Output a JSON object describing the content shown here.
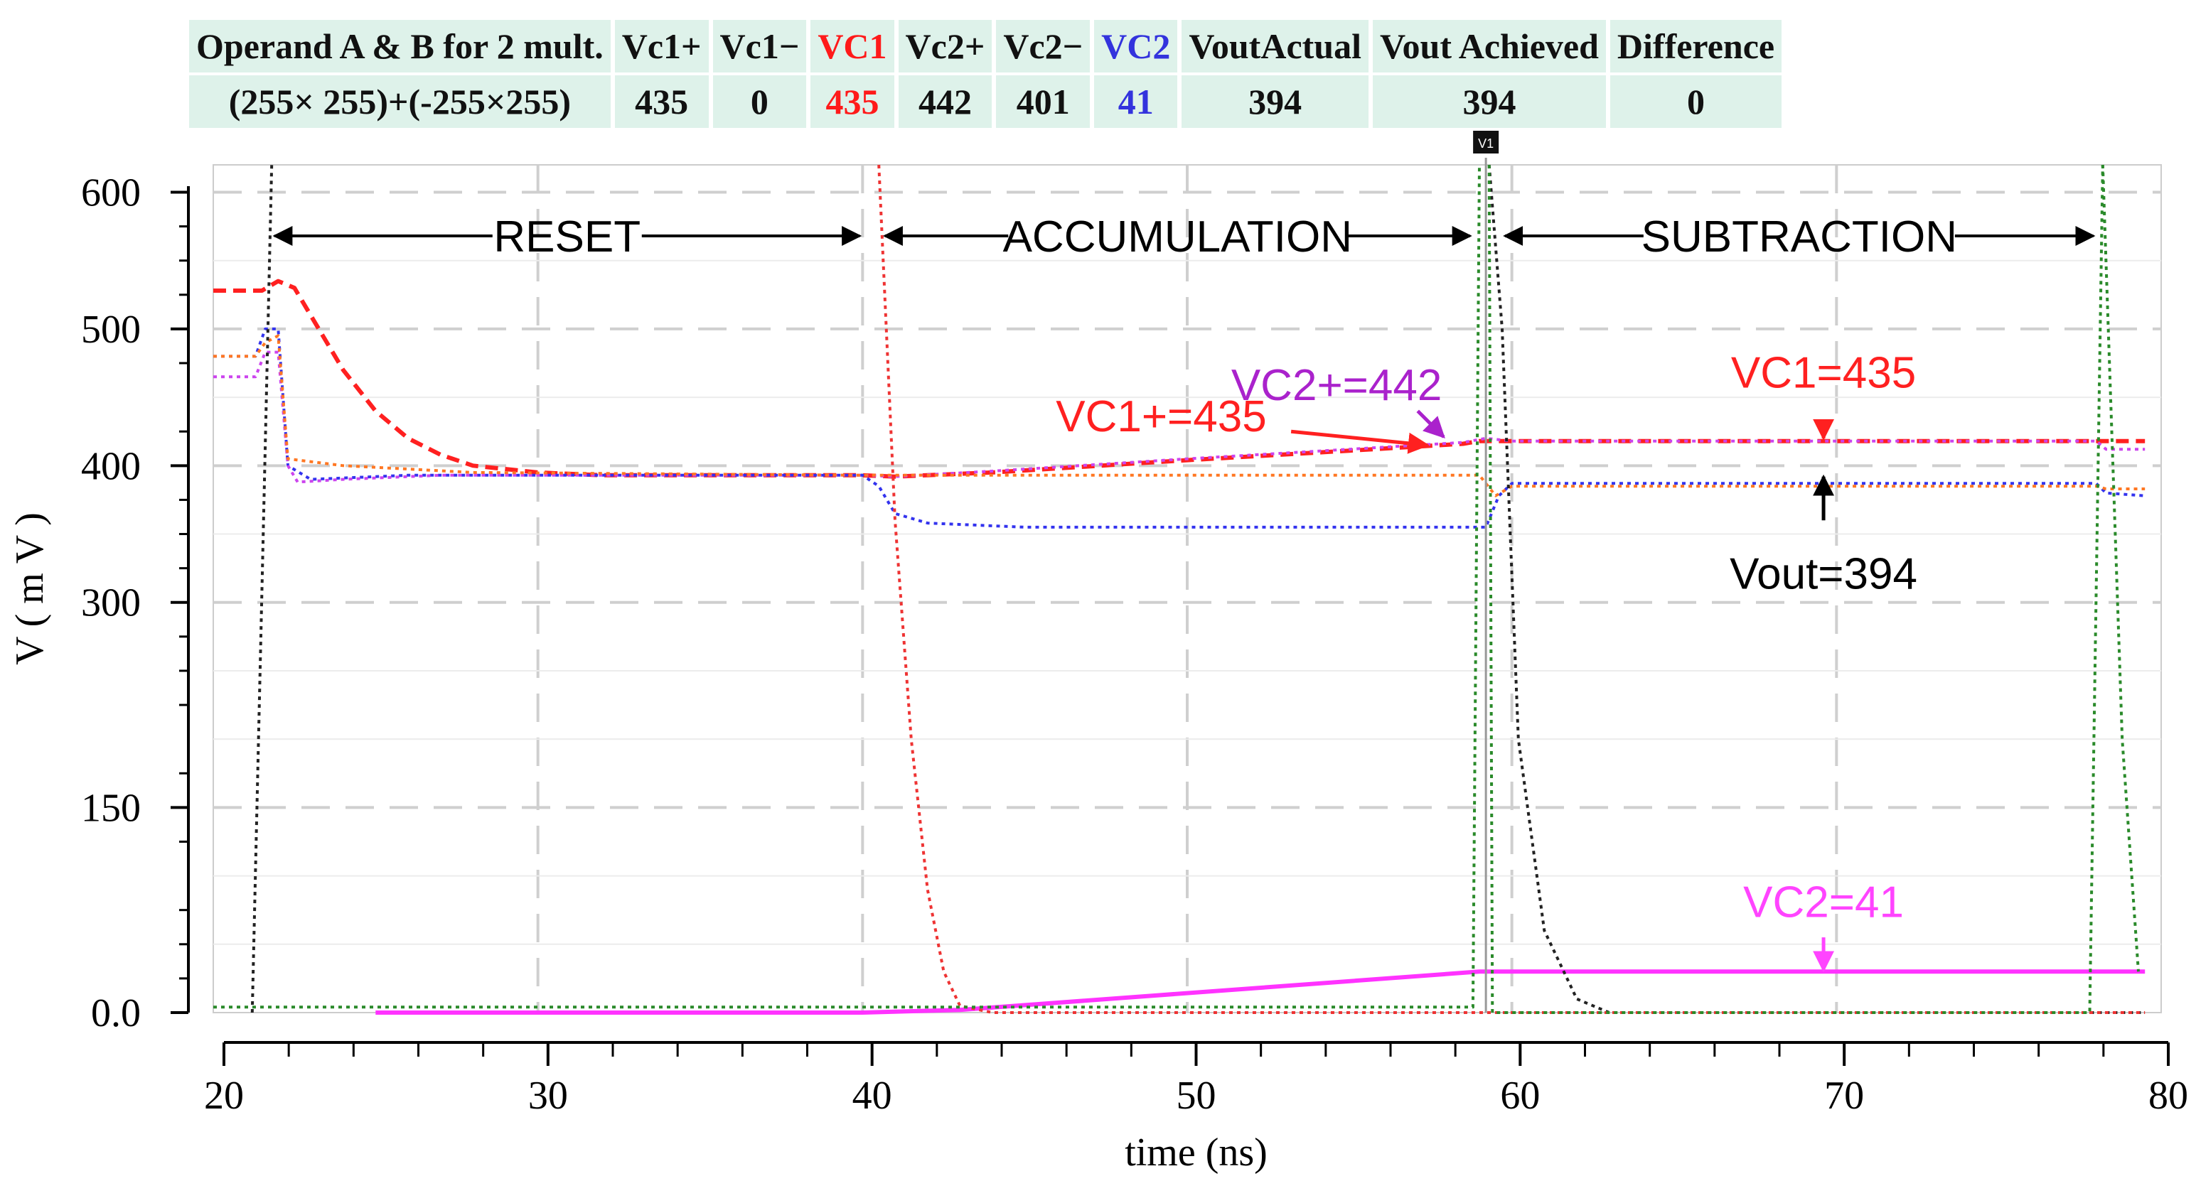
{
  "table": {
    "headers": [
      {
        "text": "Operand A & B for 2 mult.",
        "color": "#111111"
      },
      {
        "text": "Vc1+",
        "color": "#111111"
      },
      {
        "text": "Vc1−",
        "color": "#111111"
      },
      {
        "text": "VC1",
        "color": "#ff1a1a"
      },
      {
        "text": "Vc2+",
        "color": "#111111"
      },
      {
        "text": "Vc2−",
        "color": "#111111"
      },
      {
        "text": "VC2",
        "color": "#3333dd"
      },
      {
        "text": "VoutActual",
        "color": "#111111"
      },
      {
        "text": "Vout Achieved",
        "color": "#111111"
      },
      {
        "text": "Difference",
        "color": "#111111"
      }
    ],
    "values": [
      {
        "text": "(255× 255)+(-255×255)",
        "color": "#111111"
      },
      {
        "text": "435",
        "color": "#111111"
      },
      {
        "text": "0",
        "color": "#111111"
      },
      {
        "text": "435",
        "color": "#ff1a1a"
      },
      {
        "text": "442",
        "color": "#111111"
      },
      {
        "text": "401",
        "color": "#111111"
      },
      {
        "text": "41",
        "color": "#3333dd"
      },
      {
        "text": "394",
        "color": "#111111"
      },
      {
        "text": "394",
        "color": "#111111"
      },
      {
        "text": "0",
        "color": "#111111"
      }
    ]
  },
  "chart_data": {
    "type": "line",
    "xlabel": "time (ns)",
    "ylabel": "V ( m V )",
    "xlim": [
      20,
      80
    ],
    "ylim": [
      0,
      620
    ],
    "xticks": [
      20,
      30,
      40,
      50,
      60,
      70,
      80
    ],
    "yticks": [
      {
        "value": 0,
        "label": "0.0"
      },
      {
        "value": 150,
        "label": "150"
      },
      {
        "value": 300,
        "label": "300"
      },
      {
        "value": 400,
        "label": "400"
      },
      {
        "value": 500,
        "label": "500"
      },
      {
        "value": 600,
        "label": "600"
      }
    ],
    "ytick_positions": [
      0,
      150,
      300,
      400,
      500,
      600
    ],
    "grid": true,
    "regions": [
      {
        "label": "RESET",
        "from": 21.8,
        "to": 40.0
      },
      {
        "label": "ACCUMULATION",
        "from": 40.6,
        "to": 58.8
      },
      {
        "label": "SUBTRACTION",
        "from": 59.7,
        "to": 78.0
      }
    ],
    "cursor": {
      "label": "V1",
      "x": 59.2
    },
    "series": [
      {
        "color": "#ff2020",
        "style": "dash",
        "width": 6,
        "points": [
          [
            20,
            528
          ],
          [
            21.5,
            528
          ],
          [
            22,
            535
          ],
          [
            22.5,
            530
          ],
          [
            23,
            510
          ],
          [
            24,
            470
          ],
          [
            25,
            440
          ],
          [
            26,
            420
          ],
          [
            27,
            408
          ],
          [
            28,
            400
          ],
          [
            30,
            395
          ],
          [
            32,
            393
          ],
          [
            40,
            393
          ],
          [
            41,
            392
          ],
          [
            44,
            395
          ],
          [
            50,
            404
          ],
          [
            55,
            411
          ],
          [
            58.5,
            416
          ],
          [
            59,
            418
          ],
          [
            60,
            418
          ],
          [
            79.5,
            418
          ]
        ]
      },
      {
        "color": "#3333ee",
        "style": "dot",
        "width": 4,
        "points": [
          [
            20,
            480
          ],
          [
            21.3,
            480
          ],
          [
            21.6,
            500
          ],
          [
            22,
            500
          ],
          [
            22.3,
            400
          ],
          [
            23,
            390
          ],
          [
            26,
            393
          ],
          [
            40,
            393
          ],
          [
            40.5,
            385
          ],
          [
            41,
            365
          ],
          [
            42,
            358
          ],
          [
            45,
            355
          ],
          [
            58.8,
            355
          ],
          [
            59.2,
            355
          ],
          [
            59.6,
            378
          ],
          [
            60,
            387
          ],
          [
            78,
            387
          ],
          [
            78.3,
            380
          ],
          [
            79.5,
            378
          ]
        ]
      },
      {
        "color": "#cc44ee",
        "style": "dot",
        "width": 4,
        "points": [
          [
            20,
            465
          ],
          [
            21.3,
            465
          ],
          [
            21.6,
            483
          ],
          [
            22,
            483
          ],
          [
            22.3,
            400
          ],
          [
            22.6,
            388
          ],
          [
            24,
            390
          ],
          [
            27,
            393
          ],
          [
            40,
            393
          ],
          [
            41,
            392
          ],
          [
            44,
            396
          ],
          [
            50,
            405
          ],
          [
            55,
            412
          ],
          [
            58.5,
            417
          ],
          [
            59.2,
            420
          ],
          [
            60,
            418
          ],
          [
            78,
            418
          ],
          [
            78.3,
            412
          ],
          [
            79.5,
            412
          ]
        ]
      },
      {
        "color": "#ff7722",
        "style": "dot",
        "width": 4,
        "points": [
          [
            20,
            480
          ],
          [
            21.3,
            480
          ],
          [
            21.6,
            490
          ],
          [
            22,
            495
          ],
          [
            22.3,
            405
          ],
          [
            24,
            400
          ],
          [
            28,
            395
          ],
          [
            40,
            393
          ],
          [
            59,
            393
          ],
          [
            59.5,
            378
          ],
          [
            60,
            385
          ],
          [
            78,
            385
          ],
          [
            78.3,
            383
          ],
          [
            79.5,
            383
          ]
        ]
      },
      {
        "color": "#ff33ff",
        "style": "solid",
        "width": 6,
        "points": [
          [
            25,
            0
          ],
          [
            40,
            0
          ],
          [
            43,
            2
          ],
          [
            59,
            30
          ],
          [
            79.5,
            30
          ]
        ]
      },
      {
        "color": "#ff33ff",
        "style": "dash",
        "width": 6,
        "points": [
          [
            26,
            0
          ],
          [
            40,
            0
          ]
        ]
      },
      {
        "color": "#222222",
        "style": "dot",
        "width": 4,
        "points": [
          [
            21.2,
            0
          ],
          [
            21.8,
            620
          ]
        ]
      },
      {
        "color": "#222222",
        "style": "dot",
        "width": 4,
        "points": [
          [
            59.3,
            620
          ],
          [
            59.7,
            500
          ],
          [
            60.2,
            200
          ],
          [
            61,
            60
          ],
          [
            62,
            10
          ],
          [
            63,
            0
          ],
          [
            79.5,
            0
          ]
        ]
      },
      {
        "color": "#ee3333",
        "style": "dot",
        "width": 4,
        "points": [
          [
            40.5,
            620
          ],
          [
            41,
            360
          ],
          [
            41.5,
            200
          ],
          [
            42,
            90
          ],
          [
            42.5,
            30
          ],
          [
            43,
            5
          ],
          [
            44,
            0
          ],
          [
            79.5,
            0
          ]
        ]
      },
      {
        "color": "#2a8a2a",
        "style": "dot",
        "width": 4,
        "points": [
          [
            20,
            4
          ],
          [
            58.8,
            4
          ],
          [
            59.0,
            620
          ]
        ]
      },
      {
        "color": "#2a8a2a",
        "style": "dot",
        "width": 4,
        "points": [
          [
            59.3,
            620
          ],
          [
            59.4,
            0
          ],
          [
            77.8,
            0
          ],
          [
            78.2,
            620
          ]
        ]
      },
      {
        "color": "#2a8a2a",
        "style": "dot",
        "width": 4,
        "points": [
          [
            78.2,
            620
          ],
          [
            78.8,
            200
          ],
          [
            79.3,
            30
          ]
        ]
      }
    ],
    "annotations": [
      {
        "text": "VC2+=442",
        "color": "#aa22cc",
        "text_x": 54.6,
        "text_y": 448,
        "arrow_from": [
          57.1,
          440
        ],
        "arrow_to": [
          57.9,
          421
        ]
      },
      {
        "text": "VC1+=435",
        "color": "#ff2020",
        "text_x": 49.2,
        "text_y": 425,
        "arrow_from": [
          53.2,
          425
        ],
        "arrow_to": [
          57.4,
          415
        ]
      },
      {
        "text": "VC1=435",
        "color": "#ff2020",
        "text_x": 69.6,
        "text_y": 457,
        "arrow_from": [
          69.6,
          433
        ],
        "arrow_to": [
          69.6,
          420
        ]
      },
      {
        "text": "Vout=394",
        "color": "#000000",
        "text_x": 69.6,
        "text_y": 310,
        "arrow_from": [
          69.6,
          360
        ],
        "arrow_to": [
          69.6,
          392
        ]
      },
      {
        "text": "VC2=41",
        "color": "#ff44ff",
        "text_x": 69.6,
        "text_y": 70,
        "arrow_from": [
          69.6,
          55
        ],
        "arrow_to": [
          69.6,
          31
        ]
      }
    ]
  }
}
